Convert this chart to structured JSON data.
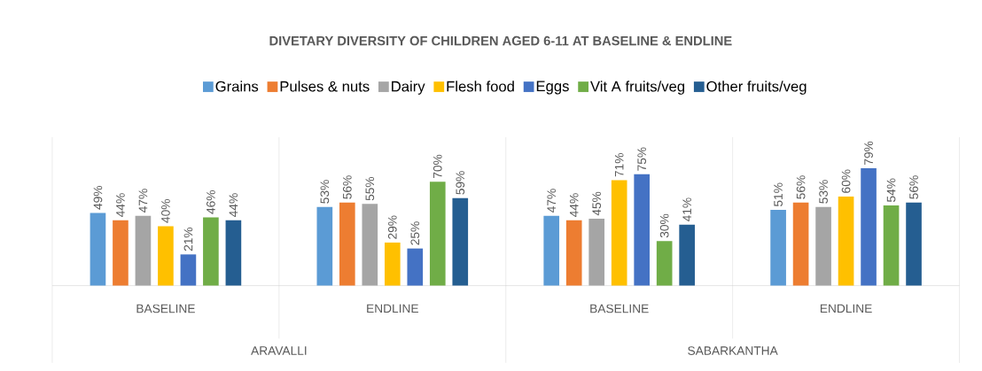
{
  "chart_data": {
    "type": "bar",
    "title": "DIVETARY DIVERSITY OF CHILDREN AGED 6-11 AT BASELINE & ENDLINE",
    "categories": [
      "BASELINE",
      "ENDLINE",
      "BASELINE",
      "ENDLINE"
    ],
    "annotations": [
      "ARAVALLI",
      "SABARKANTHA"
    ],
    "ylim": [
      0,
      100
    ],
    "tick_labels": "x",
    "legend": "top",
    "series": [
      {
        "name": "Grains",
        "color": "#5b9bd5",
        "values": [
          49,
          53,
          47,
          51
        ],
        "value_labels": [
          "49%",
          "53%",
          "47%",
          "51%"
        ]
      },
      {
        "name": "Pulses & nuts",
        "color": "#ed7d31",
        "values": [
          44,
          56,
          44,
          56
        ],
        "value_labels": [
          "44%",
          "56%",
          "44%",
          "56%"
        ]
      },
      {
        "name": "Dairy",
        "color": "#a5a5a5",
        "values": [
          47,
          55,
          45,
          53
        ],
        "value_labels": [
          "47%",
          "55%",
          "45%",
          "53%"
        ]
      },
      {
        "name": "Flesh food",
        "color": "#ffc000",
        "values": [
          40,
          29,
          71,
          60
        ],
        "value_labels": [
          "40%",
          "29%",
          "71%",
          "60%"
        ]
      },
      {
        "name": "Eggs",
        "color": "#4472c4",
        "values": [
          21,
          25,
          75,
          79
        ],
        "value_labels": [
          "21%",
          "25%",
          "75%",
          "79%"
        ]
      },
      {
        "name": "Vit A fruits/veg",
        "color": "#70ad47",
        "values": [
          46,
          70,
          30,
          54
        ],
        "value_labels": [
          "46%",
          "70%",
          "30%",
          "54%"
        ]
      },
      {
        "name": "Other fruits/veg",
        "color": "#255e91",
        "values": [
          44,
          59,
          41,
          56
        ],
        "value_labels": [
          "44%",
          "59%",
          "41%",
          "56%"
        ]
      }
    ]
  }
}
